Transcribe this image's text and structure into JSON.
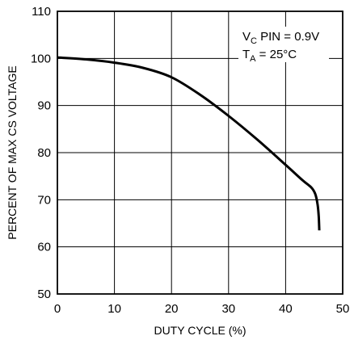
{
  "chart_data": {
    "type": "line",
    "title": "",
    "xlabel": "DUTY CYCLE (%)",
    "ylabel": "PERCENT OF MAX CS VOLTAGE",
    "xlim": [
      0,
      50
    ],
    "ylim": [
      50,
      110
    ],
    "xticks": [
      0,
      10,
      20,
      30,
      40,
      50
    ],
    "yticks": [
      50,
      60,
      70,
      80,
      90,
      100,
      110
    ],
    "grid": true,
    "annotations": [
      {
        "parts": [
          {
            "text": "V",
            "role": "base"
          },
          {
            "text": "C",
            "role": "sub"
          },
          {
            "text": " PIN = 0.9V",
            "role": "base"
          }
        ]
      },
      {
        "parts": [
          {
            "text": "T",
            "role": "base"
          },
          {
            "text": "A",
            "role": "sub"
          },
          {
            "text": " = 25°C",
            "role": "base"
          }
        ]
      }
    ],
    "series": [
      {
        "color": "#000000",
        "x": [
          0,
          5,
          10,
          15,
          20,
          25,
          30,
          35,
          40,
          43,
          44.5,
          45.2,
          45.6,
          45.8,
          45.9
        ],
        "y": [
          100.2,
          99.8,
          99.1,
          98.0,
          96.0,
          92.3,
          87.8,
          82.8,
          77.4,
          74.1,
          72.6,
          71.2,
          69.0,
          66.5,
          63.5
        ]
      }
    ]
  }
}
